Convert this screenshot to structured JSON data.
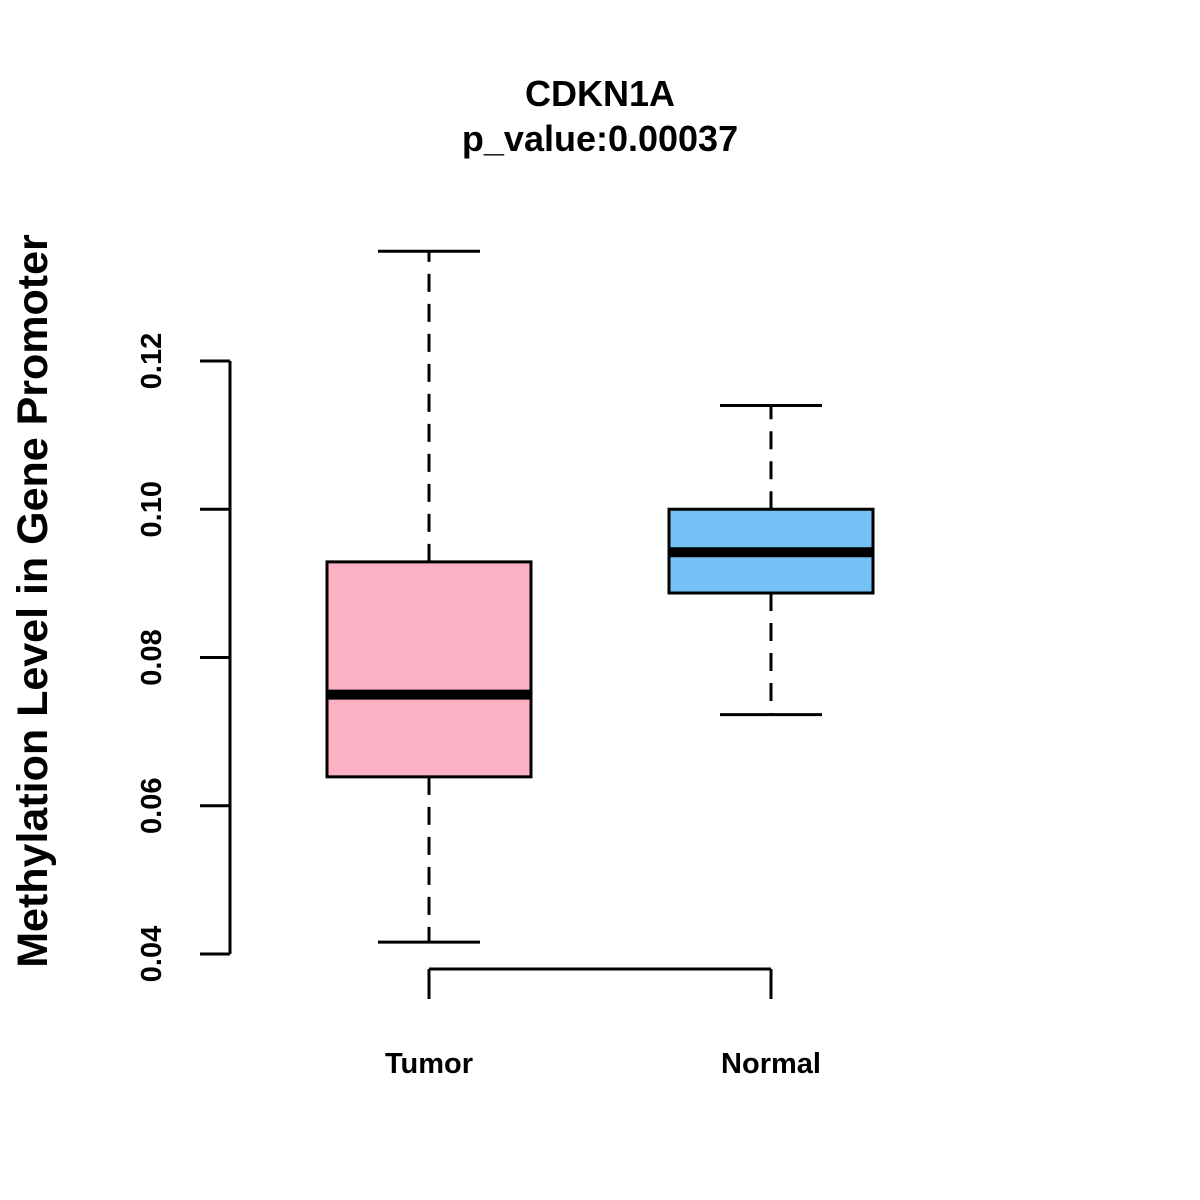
{
  "chart_data": {
    "type": "boxplot",
    "title": "CDKN1A",
    "subtitle": "p_value:0.00037",
    "xlabel": "",
    "ylabel": "Methylation Level in Gene Promoter",
    "ylim": [
      0.04,
      0.12
    ],
    "yticks": [
      0.04,
      0.06,
      0.08,
      0.1,
      0.12
    ],
    "ytick_labels": [
      "0.04",
      "0.06",
      "0.08",
      "0.10",
      "0.12"
    ],
    "categories": [
      "Tumor",
      "Normal"
    ],
    "series": [
      {
        "name": "Tumor",
        "color": "#FBB1C3",
        "whisker_low": 0.0416,
        "q1": 0.0639,
        "median": 0.075,
        "q3": 0.0929,
        "whisker_high": 0.1348
      },
      {
        "name": "Normal",
        "color": "#74C1F5",
        "whisker_low": 0.0723,
        "q1": 0.0887,
        "median": 0.0942,
        "q3": 0.1,
        "whisker_high": 0.114
      }
    ],
    "grid": false
  }
}
